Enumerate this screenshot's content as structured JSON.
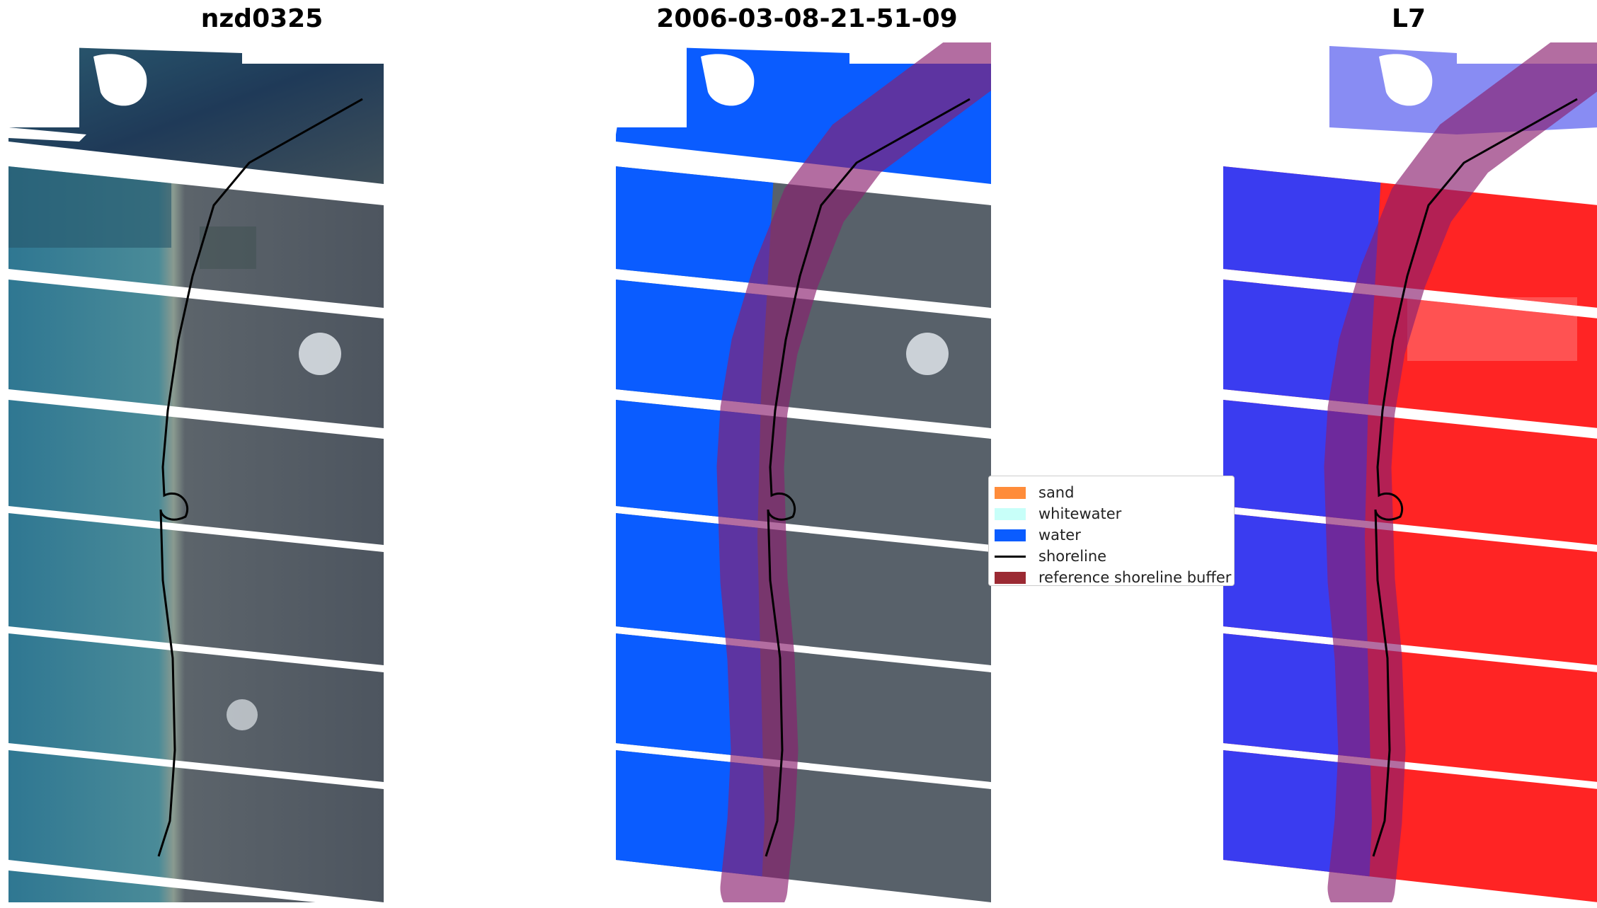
{
  "panels": [
    {
      "title": "nzd0325",
      "kind": "rgb"
    },
    {
      "title": "2006-03-08-21-51-09",
      "kind": "classified"
    },
    {
      "title": "L7",
      "kind": "index"
    }
  ],
  "legend": {
    "items": [
      {
        "label": "sand",
        "type": "patch",
        "color": "#ff8c3a"
      },
      {
        "label": "whitewater",
        "type": "patch",
        "color": "#c8fff9"
      },
      {
        "label": "water",
        "type": "patch",
        "color": "#0a5cff"
      },
      {
        "label": "shoreline",
        "type": "line",
        "color": "#000000"
      },
      {
        "label": "reference shoreline buffer",
        "type": "patch",
        "color": "#9b2a33"
      }
    ]
  },
  "colors": {
    "sea": "#3f7f92",
    "land": "#58616a",
    "dark_sea": "#1f3a58",
    "water_class": "#0a5cff",
    "index_water": "#3a3cf0",
    "index_land": "#ff2424",
    "buffer": "#8b1f6f"
  }
}
